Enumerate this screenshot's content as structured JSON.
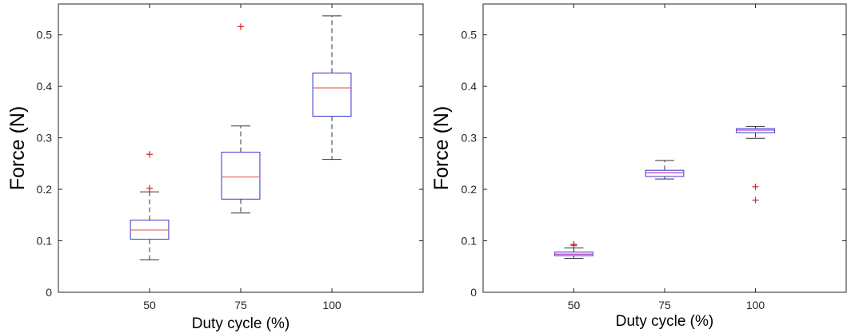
{
  "chart_data": [
    {
      "type": "box",
      "title": "",
      "xlabel": "Duty cycle (%)",
      "ylabel": "Force (N)",
      "categories": [
        "50",
        "75",
        "100"
      ],
      "ylim": [
        0,
        0.56
      ],
      "yticks": [
        0,
        0.1,
        0.2,
        0.3,
        0.4,
        0.5
      ],
      "ytick_labels": [
        "0",
        "0.1",
        "0.2",
        "0.3",
        "0.4",
        "0.5"
      ],
      "grid": false,
      "box_color": "#3333cc",
      "median_color": "#e8736b",
      "whisker_color": "#333333",
      "outlier_color": "#cc2222",
      "boxes": [
        {
          "category": "50",
          "whisker_low": 0.063,
          "q1": 0.103,
          "median": 0.121,
          "q3": 0.14,
          "whisker_high": 0.195,
          "outliers": [
            0.202,
            0.268
          ]
        },
        {
          "category": "75",
          "whisker_low": 0.154,
          "q1": 0.181,
          "median": 0.224,
          "q3": 0.272,
          "whisker_high": 0.323,
          "outliers": [
            0.516
          ]
        },
        {
          "category": "100",
          "whisker_low": 0.258,
          "q1": 0.342,
          "median": 0.397,
          "q3": 0.426,
          "whisker_high": 0.537,
          "outliers": []
        }
      ]
    },
    {
      "type": "box",
      "title": "",
      "xlabel": "Duty cycle (%)",
      "ylabel": "Force (N)",
      "categories": [
        "50",
        "75",
        "100"
      ],
      "ylim": [
        0,
        0.56
      ],
      "yticks": [
        0,
        0.1,
        0.2,
        0.3,
        0.4,
        0.5
      ],
      "ytick_labels": [
        "0",
        "0.1",
        "0.2",
        "0.3",
        "0.4",
        "0.5"
      ],
      "grid": false,
      "box_color": "#3333cc",
      "median_color": "#c44cc4",
      "whisker_color": "#333333",
      "outlier_color": "#cc2222",
      "boxes": [
        {
          "category": "50",
          "whisker_low": 0.066,
          "q1": 0.071,
          "median": 0.074,
          "q3": 0.078,
          "whisker_high": 0.086,
          "outliers": [
            0.091,
            0.093
          ]
        },
        {
          "category": "75",
          "whisker_low": 0.22,
          "q1": 0.225,
          "median": 0.232,
          "q3": 0.237,
          "whisker_high": 0.256,
          "outliers": []
        },
        {
          "category": "100",
          "whisker_low": 0.299,
          "q1": 0.31,
          "median": 0.315,
          "q3": 0.318,
          "whisker_high": 0.322,
          "outliers": [
            0.205,
            0.179
          ]
        }
      ]
    }
  ]
}
